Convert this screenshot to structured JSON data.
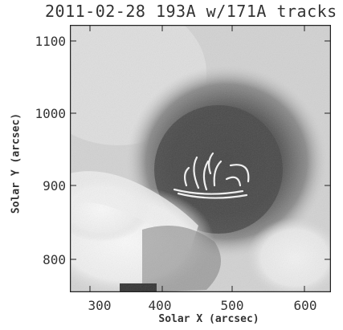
{
  "title": "2011-02-28 193A w/171A tracks",
  "axes": {
    "xlabel": "Solar X (arcsec)",
    "ylabel": "Solar Y (arcsec)",
    "xticks": [
      "300",
      "400",
      "500",
      "600"
    ],
    "yticks": [
      "1100",
      "1000",
      "900",
      "800"
    ]
  },
  "image": {
    "description_colors": {
      "background": "#d4d4d4",
      "dark_region": "#4a4a4a",
      "bright_region": "#f2f2f2",
      "tracks": "#ffffff"
    }
  }
}
